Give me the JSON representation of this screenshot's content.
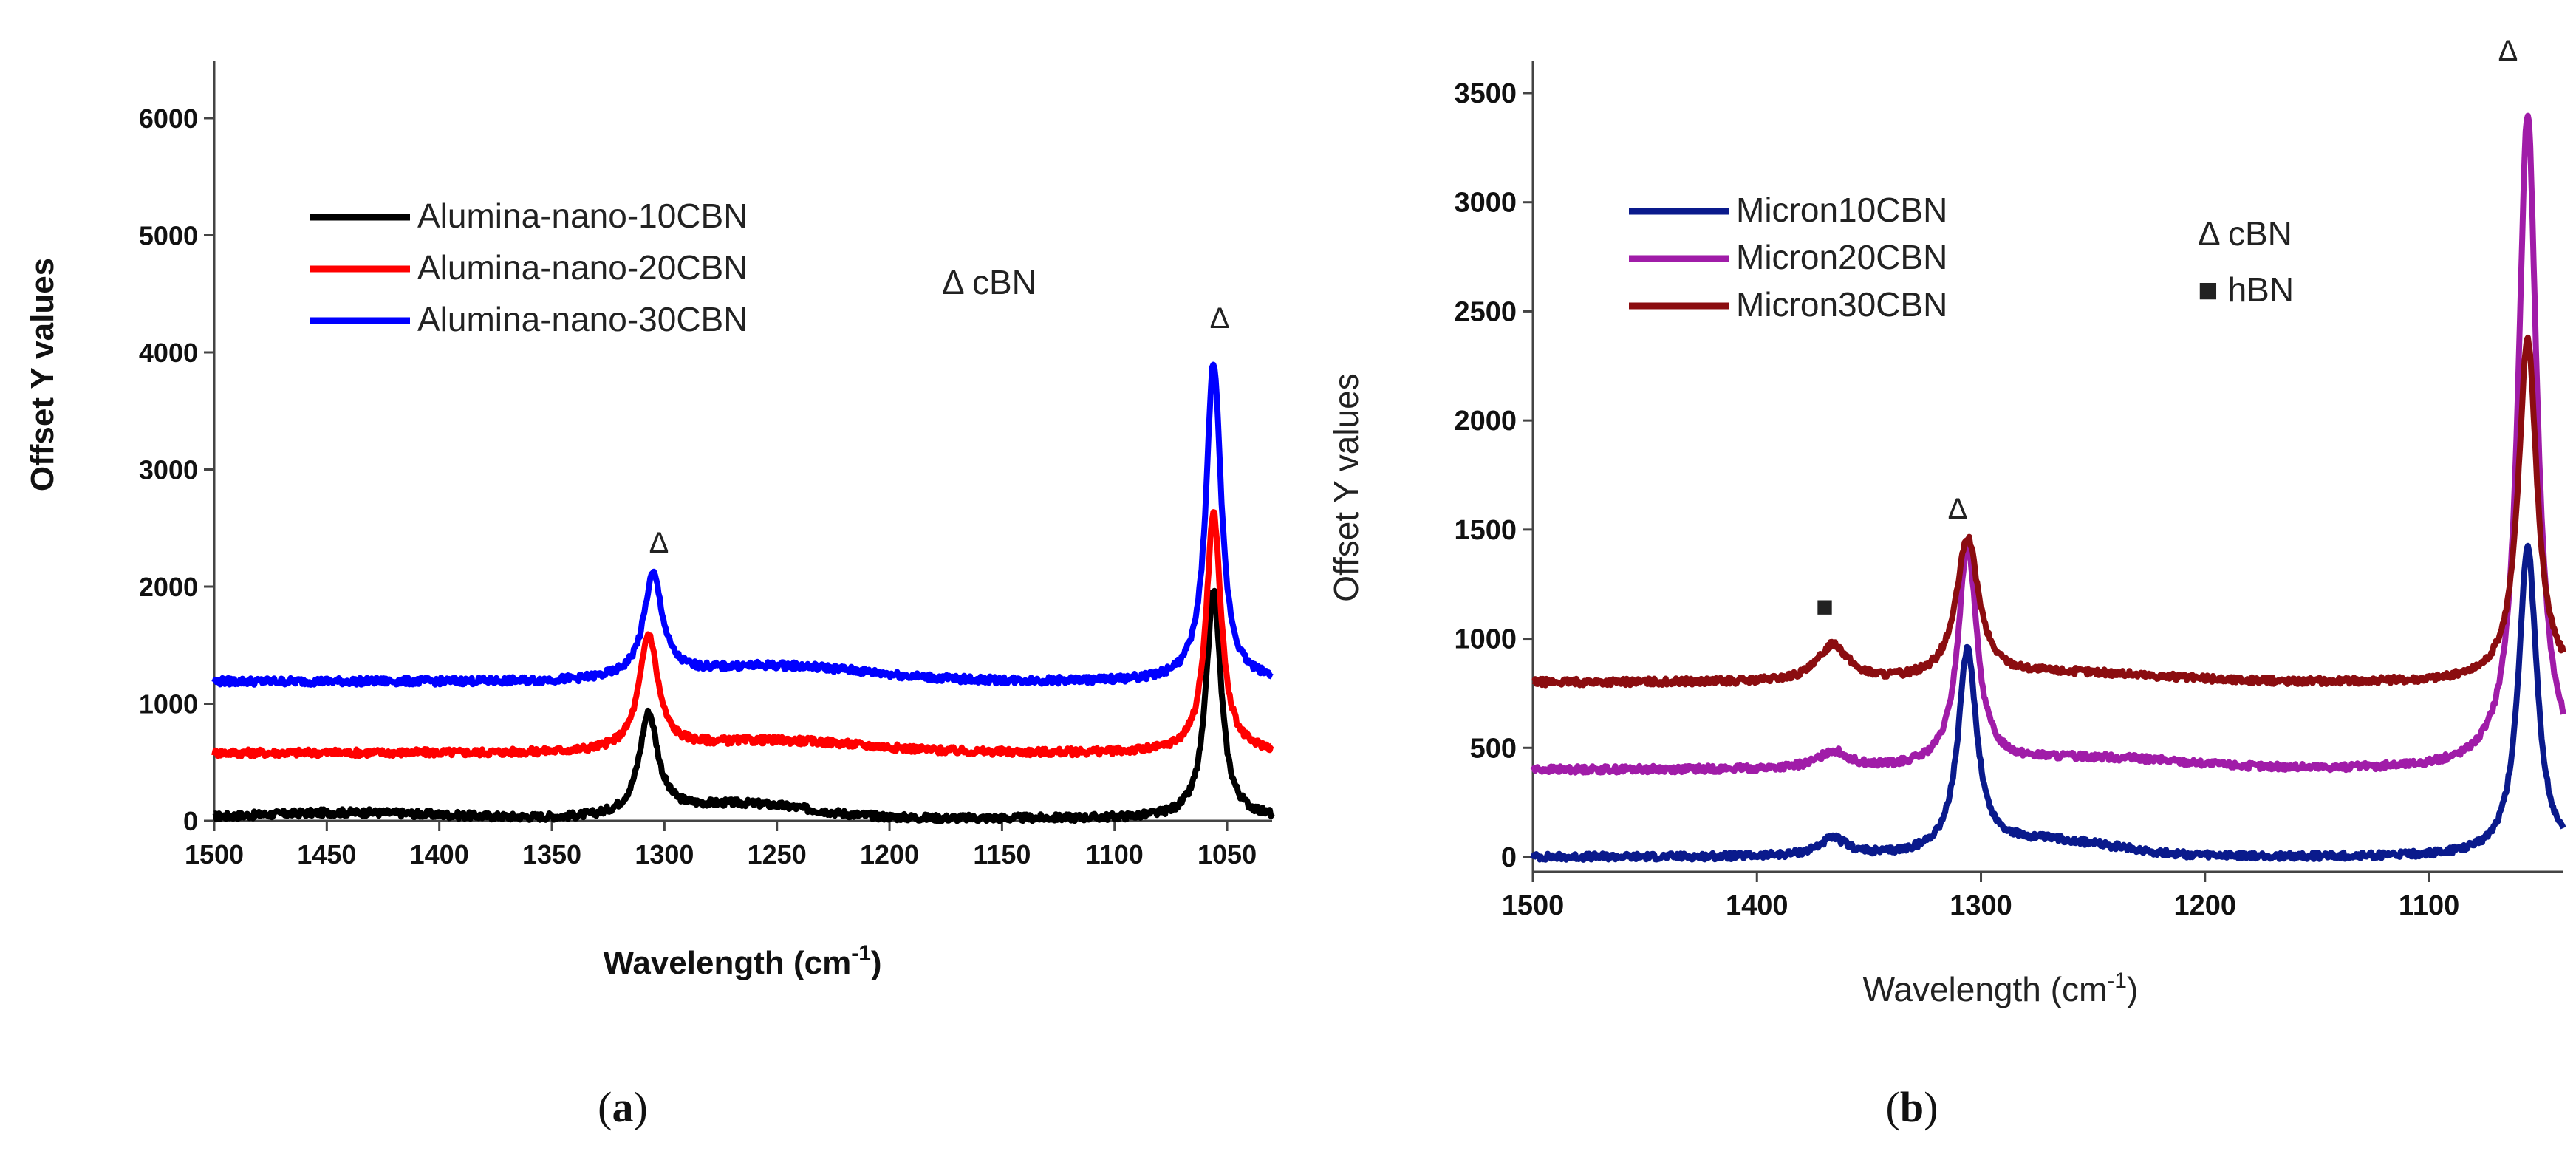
{
  "chart_data": [
    {
      "type": "line",
      "panel": "a",
      "caption_open": "(",
      "caption_letter": "a",
      "caption_close": ")",
      "xlabel": "Wavelength (cm",
      "xlabel_sup": "-1",
      "xlabel_close": ")",
      "ylabel": "Offset Y values",
      "xlim": [
        1500,
        1030
      ],
      "ylim": [
        0,
        6500
      ],
      "xticks": [
        "1500",
        "1450",
        "1400",
        "1350",
        "1300",
        "1250",
        "1200",
        "1150",
        "1100",
        "1050"
      ],
      "yticks": [
        "0",
        "1000",
        "2000",
        "3000",
        "4000",
        "5000",
        "6000"
      ],
      "legend_position": "upper-left",
      "annotation": "Δ cBN",
      "peak_marker": "Δ",
      "peak_marker_positions": [
        1305,
        1057
      ],
      "series": [
        {
          "name": "Alumina-nano-10CBN",
          "color": "#000000",
          "baseline": 20,
          "peaks": [
            [
              1307,
              860,
              5
            ],
            [
              1056,
              1950,
              4
            ]
          ],
          "bumps": [
            [
              1440,
              50,
              40
            ],
            [
              1265,
              120,
              30
            ]
          ]
        },
        {
          "name": "Alumina-nano-20CBN",
          "color": "#ff0000",
          "baseline": 580,
          "peaks": [
            [
              1307,
              980,
              5
            ],
            [
              1056,
              2050,
              4
            ]
          ],
          "bumps": [
            [
              1250,
              100,
              40
            ]
          ]
        },
        {
          "name": "Alumina-nano-30CBN",
          "color": "#0000ff",
          "baseline": 1190,
          "peaks": [
            [
              1305,
              870,
              5
            ],
            [
              1056,
              2730,
              4
            ]
          ],
          "bumps": [
            [
              1250,
              130,
              40
            ]
          ]
        }
      ]
    },
    {
      "type": "line",
      "panel": "b",
      "caption_open": "(",
      "caption_letter": "b",
      "caption_close": ")",
      "xlabel": "Wavelength (cm",
      "xlabel_sup": "-1",
      "xlabel_close": ")",
      "ylabel": "Offset Y values",
      "xlim": [
        1500,
        1040
      ],
      "ylim": [
        -100,
        3550
      ],
      "xticks": [
        "1500",
        "1400",
        "1300",
        "1200",
        "1100"
      ],
      "yticks": [
        "0",
        "500",
        "1000",
        "1500",
        "2000",
        "2500",
        "3000",
        "3500"
      ],
      "legend_position": "upper-left",
      "annotation_cbn": "Δ cBN",
      "annotation_hbn": "■ hBN",
      "peak_marker": "Δ",
      "hbn_marker": "■",
      "series": [
        {
          "name": "Micron10CBN",
          "color": "#0a1a8c",
          "baseline": 0,
          "peaks": [
            [
              1306,
              920,
              5
            ],
            [
              1056,
              1420,
              5
            ],
            [
              1366,
              80,
              8
            ]
          ],
          "bumps": [
            [
              1270,
              70,
              30
            ]
          ]
        },
        {
          "name": "Micron20CBN",
          "color": "#a01ca8",
          "baseline": 400,
          "peaks": [
            [
              1306,
              1020,
              5
            ],
            [
              1056,
              3010,
              5
            ],
            [
              1366,
              80,
              8
            ]
          ],
          "bumps": [
            [
              1250,
              50,
              40
            ]
          ]
        },
        {
          "name": "Micron30CBN",
          "color": "#8b0d10",
          "baseline": 800,
          "peaks": [
            [
              1306,
              640,
              6
            ],
            [
              1056,
              1580,
              5
            ],
            [
              1366,
              170,
              8
            ]
          ],
          "bumps": [
            [
              1260,
              40,
              40
            ]
          ]
        }
      ]
    }
  ]
}
